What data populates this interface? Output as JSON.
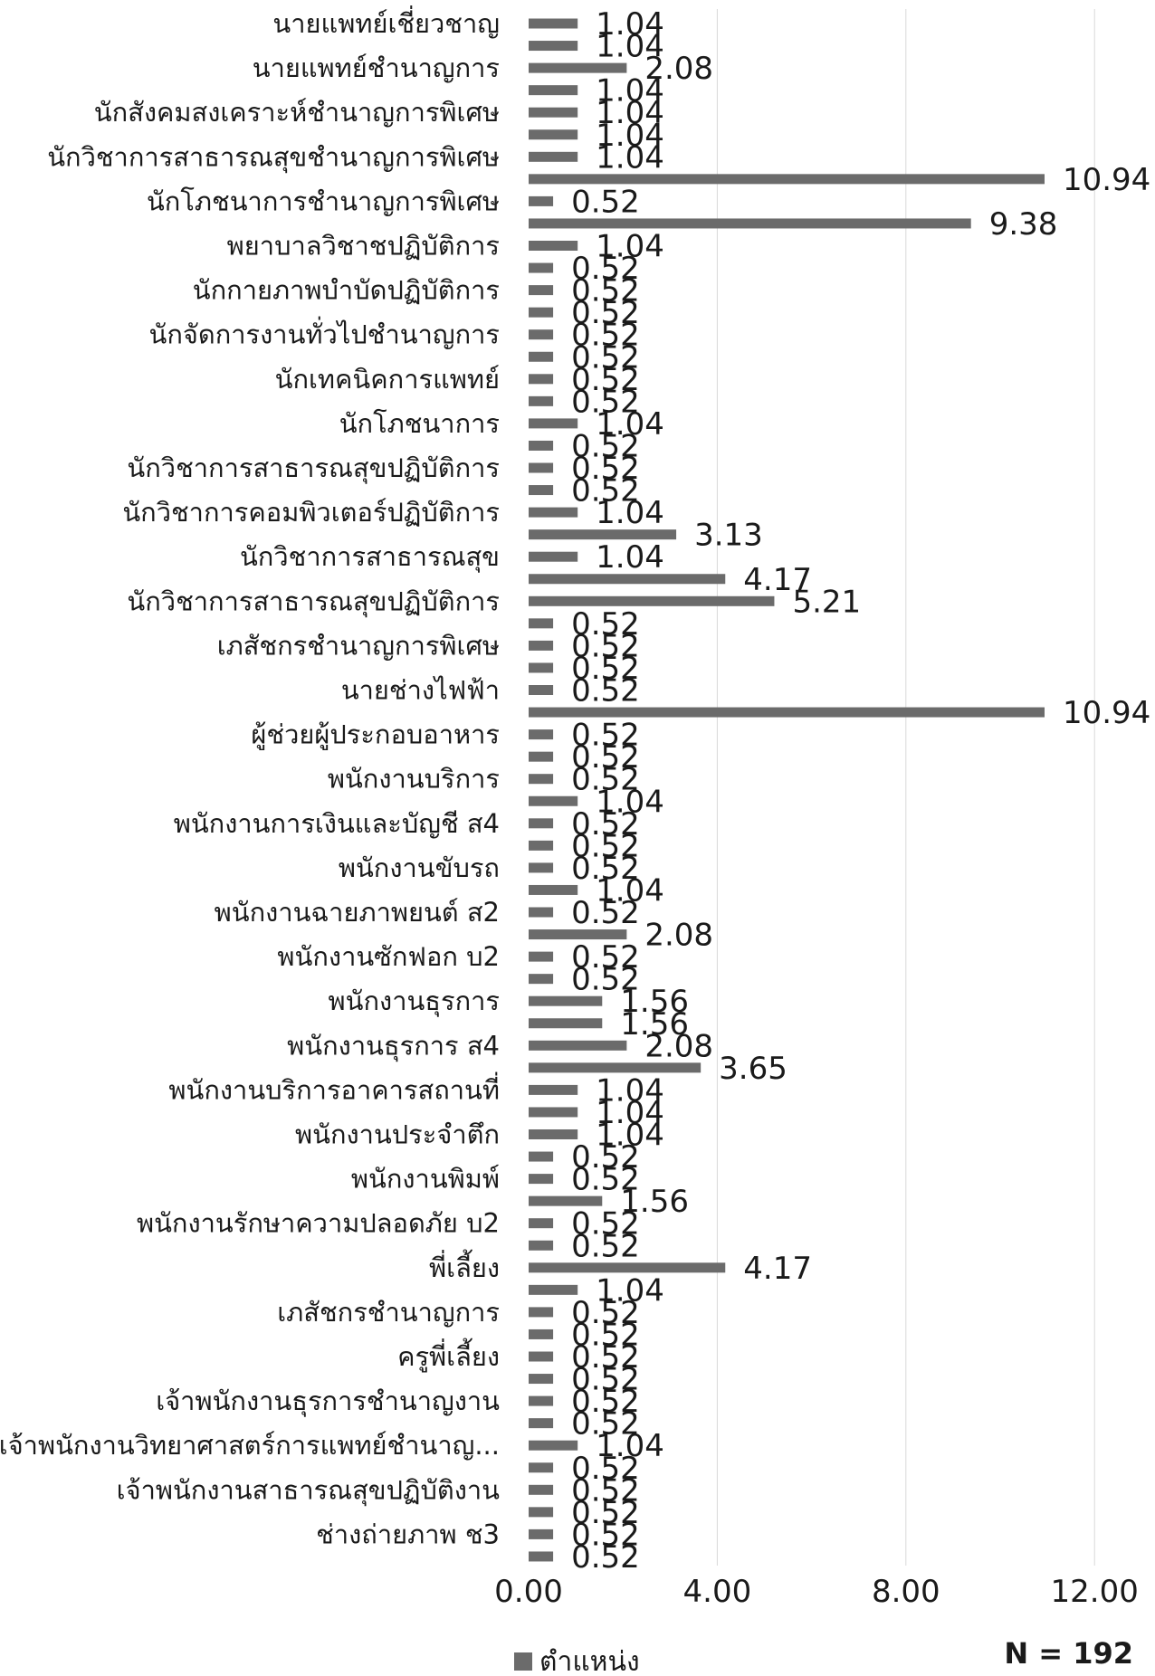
{
  "chart_data": {
    "type": "bar",
    "orientation": "horizontal",
    "categories": [
      "นายแพทย์เชี่ยวชาญ",
      "",
      "นายแพทย์ชำนาญการ",
      "",
      "นักสังคมสงเคราะห์ชำนาญการพิเศษ",
      "",
      "นักวิชาการสาธารณสุขชำนาญการพิเศษ",
      "",
      "นักโภชนาการชำนาญการพิเศษ",
      "",
      "พยาบาลวิชาชปฏิบัติการ",
      "",
      "นักกายภาพบำบัดปฏิบัติการ",
      "",
      "นักจัดการงานทั่วไปชำนาญการ",
      "",
      "นักเทคนิคการแพทย์",
      "",
      "นักโภชนาการ",
      "",
      "นักวิชาการสาธารณสุขปฏิบัติการ",
      "",
      "นักวิชาการคอมพิวเตอร์ปฏิบัติการ",
      "",
      "นักวิชาการสาธารณสุข",
      "",
      "นักวิชาการสาธารณสุขปฏิบัติการ",
      "",
      "เภสัชกรชำนาญการพิเศษ",
      "",
      "นายช่างไฟฟ้า",
      "",
      "ผู้ช่วยผู้ประกอบอาหาร",
      "",
      "พนักงานบริการ",
      "",
      "พนักงานการเงินและบัญชี ส4",
      "",
      "พนักงานขับรถ",
      "",
      "พนักงานฉายภาพยนต์ ส2",
      "",
      "พนักงานซักฟอก บ2",
      "",
      "พนักงานธุรการ",
      "",
      "พนักงานธุรการ ส4",
      "",
      "พนักงานบริการอาคารสถานที่",
      "",
      "พนักงานประจำตึก",
      "",
      "พนักงานพิมพ์",
      "",
      "พนักงานรักษาความปลอดภัย บ2",
      "",
      "พี่เลี้ยง",
      "",
      "เภสัชกรชำนาญการ",
      "",
      "ครูพี่เลี้ยง",
      "",
      "เจ้าพนักงานธุรการชำนาญงาน",
      "",
      "เจ้าพนักงานวิทยาศาสตร์การแพทย์ชำนาญ...",
      "",
      "เจ้าพนักงานสาธารณสุขปฏิบัติงาน",
      "",
      "ช่างถ่ายภาพ ช3",
      ""
    ],
    "series": [
      {
        "name": "ตำแหน่ง",
        "values": [
          1.04,
          1.04,
          2.08,
          1.04,
          1.04,
          1.04,
          1.04,
          10.94,
          0.52,
          9.38,
          1.04,
          0.52,
          0.52,
          0.52,
          0.52,
          0.52,
          0.52,
          0.52,
          1.04,
          0.52,
          0.52,
          0.52,
          1.04,
          3.13,
          1.04,
          4.17,
          5.21,
          0.52,
          0.52,
          0.52,
          0.52,
          10.94,
          0.52,
          0.52,
          0.52,
          1.04,
          0.52,
          0.52,
          0.52,
          1.04,
          0.52,
          2.08,
          0.52,
          0.52,
          1.56,
          1.56,
          2.08,
          3.65,
          1.04,
          1.04,
          1.04,
          0.52,
          0.52,
          1.56,
          0.52,
          0.52,
          4.17,
          1.04,
          0.52,
          0.52,
          0.52,
          0.52,
          0.52,
          0.52,
          1.04,
          0.52,
          0.52,
          0.52,
          0.52,
          0.52
        ]
      }
    ],
    "value_labels": [
      "1.04",
      "1.04",
      "2.08",
      "1.04",
      "1.04",
      "1.04",
      "1.04",
      "10.94",
      "0.52",
      "9.38",
      "1.04",
      "0.52",
      "0.52",
      "0.52",
      "0.52",
      "0.52",
      "0.52",
      "0.52",
      "1.04",
      "0.52",
      "0.52",
      "0.52",
      "1.04",
      "3.13",
      "1.04",
      "4.17",
      "5.21",
      "0.52",
      "0.52",
      "0.52",
      "0.52",
      "10.94",
      "0.52",
      "0.52",
      "0.52",
      "1.04",
      "0.52",
      "0.52",
      "0.52",
      "1.04",
      "0.52",
      "2.08",
      "0.52",
      "0.52",
      "1.56",
      "1.56",
      "2.08",
      "3.65",
      "1.04",
      "1.04",
      "1.04",
      "0.52",
      "0.52",
      "1.56",
      "0.52",
      "0.52",
      "4.17",
      "1.04",
      "0.52",
      "0.52",
      "0.52",
      "0.52",
      "0.52",
      "0.52",
      "1.04",
      "0.52",
      "0.52",
      "0.52",
      "0.52",
      "0.52"
    ],
    "xlim": [
      0,
      12
    ],
    "xticks": [
      "0.00",
      "4.00",
      "8.00",
      "12.00"
    ],
    "xtick_values": [
      0,
      4,
      8,
      12
    ],
    "grid": "vertical",
    "legend": {
      "position": "bottom",
      "entries": [
        "ตำแหน่ง"
      ]
    },
    "annotation": "N = 192",
    "bar_color": "#6b6b6b",
    "grid_color": "#d9d9d9"
  }
}
